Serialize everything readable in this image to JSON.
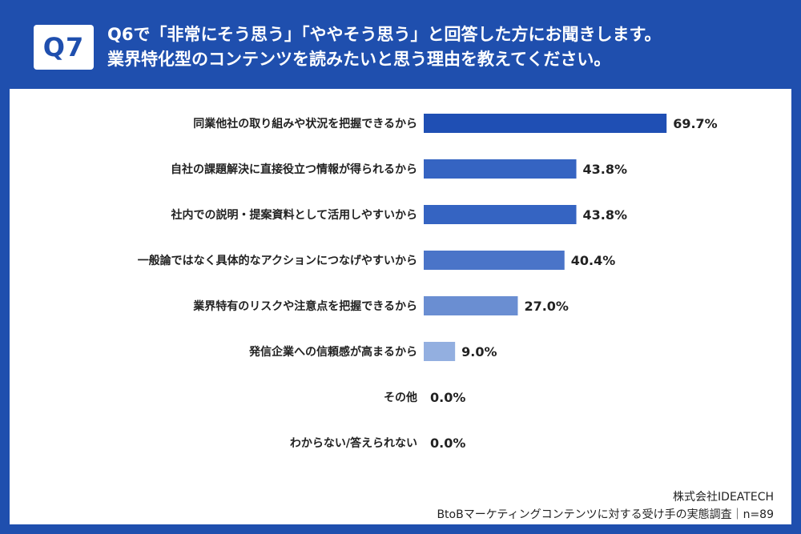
{
  "question": {
    "badge": "Q7",
    "line1": "Q6で「非常にそう思う」「ややそう思う」と回答した方にお聞きします。",
    "line2": "業界特化型のコンテンツを読みたいと思う理由を教えてください。"
  },
  "footer": {
    "company": "株式会社IDEATECH",
    "survey": "BtoBマーケティングコンテンツに対する受け手の実態調査｜n=89"
  },
  "chart_data": {
    "type": "bar",
    "orientation": "horizontal",
    "unit": "%",
    "xlim": [
      0,
      100
    ],
    "grid": false,
    "categories": [
      "同業他社の取り組みや状況を把握できるから",
      "自社の課題解決に直接役立つ情報が得られるから",
      "社内での説明・提案資料として活用しやすいから",
      "一般論ではなく具体的なアクションにつなげやすいから",
      "業界特有のリスクや注意点を把握できるから",
      "発信企業への信頼感が高まるから",
      "その他",
      "わからない/答えられない"
    ],
    "values": [
      69.7,
      43.8,
      43.8,
      40.4,
      27.0,
      9.0,
      0.0,
      0.0
    ],
    "value_labels": [
      "69.7%",
      "43.8%",
      "43.8%",
      "40.4%",
      "27.0%",
      "9.0%",
      "0.0%",
      "0.0%"
    ],
    "colors": [
      "#1f4fb4",
      "#3564c2",
      "#3564c2",
      "#4a74c8",
      "#6a8ed2",
      "#93afe0",
      "#93afe0",
      "#93afe0"
    ]
  }
}
